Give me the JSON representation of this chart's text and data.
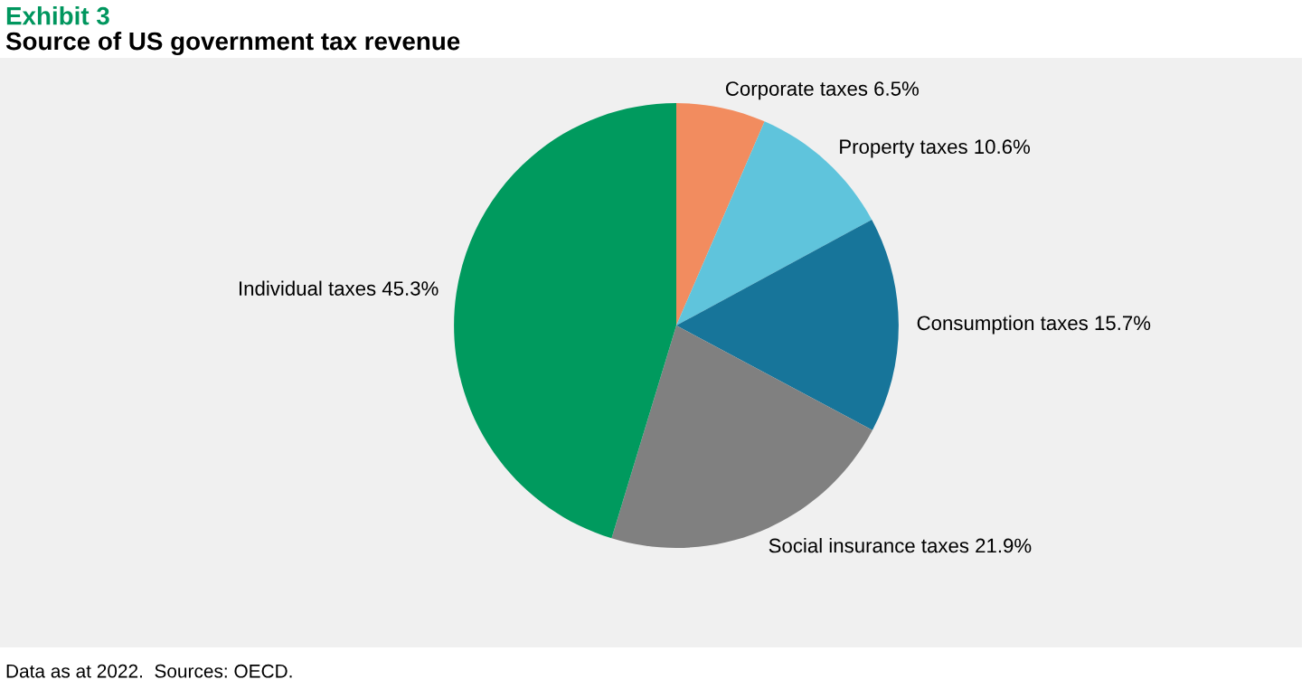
{
  "chart_data": {
    "type": "pie",
    "title": "Exhibit 3",
    "subtitle": "Source of US government tax revenue",
    "categories": [
      "Corporate taxes 6.5%",
      "Property taxes 10.6%",
      "Consumption taxes 15.7%",
      "Social insurance taxes 21.9%",
      "Individual taxes 45.3%"
    ],
    "values": [
      6.5,
      10.6,
      15.7,
      21.9,
      45.3
    ],
    "colors": [
      "#f28c5f",
      "#5fc4dc",
      "#17759a",
      "#808080",
      "#009a5e"
    ],
    "legend": false,
    "annotations": [
      "Data as at 2022.  Sources: OECD."
    ]
  }
}
